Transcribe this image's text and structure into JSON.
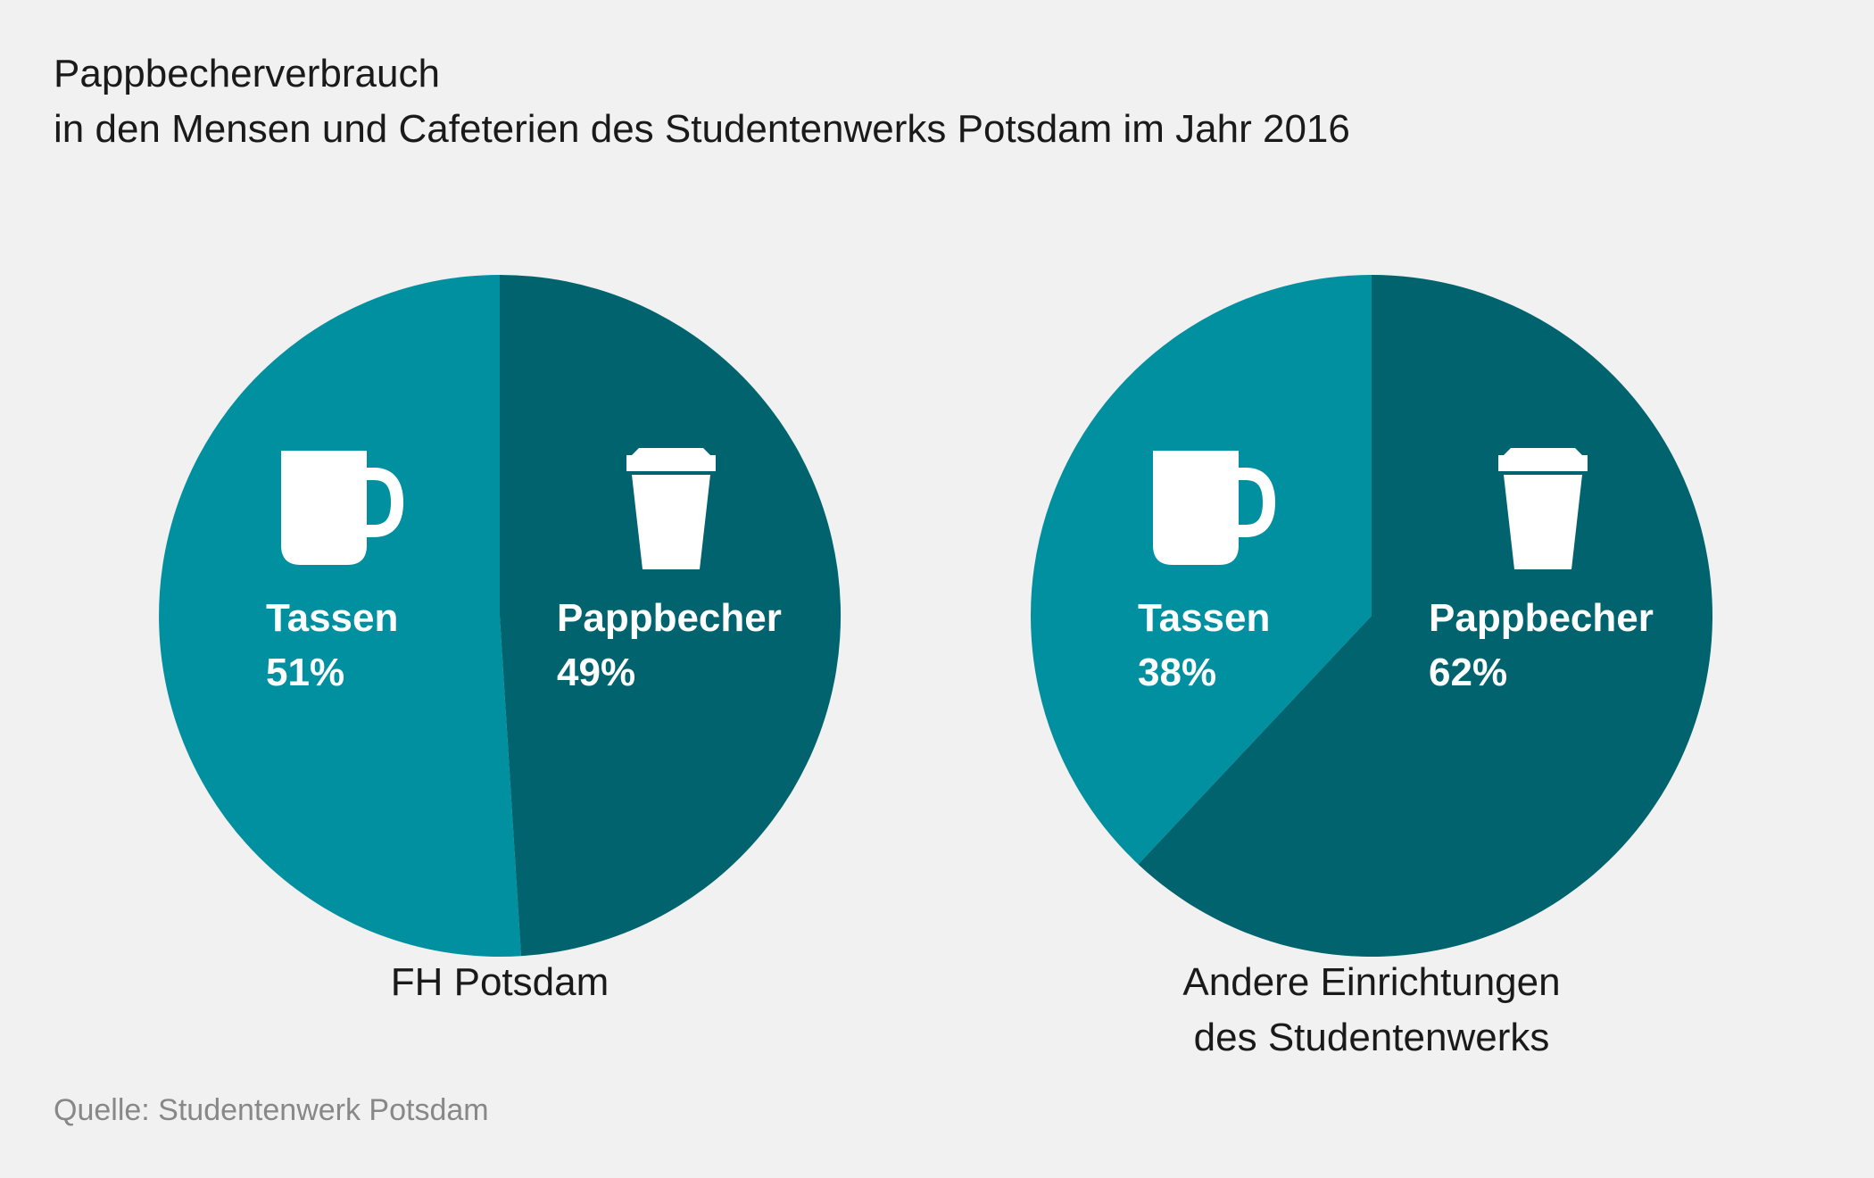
{
  "title": {
    "line1": "Pappbecherverbrauch",
    "line2": "in den Mensen und Cafeterien des Studentenwerks Potsdam im Jahr 2016"
  },
  "source": "Quelle: Studentenwerk Potsdam",
  "colors": {
    "tassen": "#0090a0",
    "pappbecher": "#00636d",
    "label_text": "#ffffff",
    "background": "#f1f1f1"
  },
  "chart_data": [
    {
      "type": "pie",
      "title": "FH Potsdam",
      "title_lines": [
        "FH Potsdam"
      ],
      "unit": "%",
      "slices": [
        {
          "label": "Tassen",
          "value": 51,
          "display": "51%",
          "icon": "mug-icon",
          "color": "#0090a0"
        },
        {
          "label": "Pappbecher",
          "value": 49,
          "display": "49%",
          "icon": "paper-cup-icon",
          "color": "#00636d"
        }
      ]
    },
    {
      "type": "pie",
      "title": "Andere Einrichtungen des Studentenwerks",
      "title_lines": [
        "Andere Einrichtungen",
        "des Studentenwerks"
      ],
      "unit": "%",
      "slices": [
        {
          "label": "Tassen",
          "value": 38,
          "display": "38%",
          "icon": "mug-icon",
          "color": "#0090a0"
        },
        {
          "label": "Pappbecher",
          "value": 62,
          "display": "62%",
          "icon": "paper-cup-icon",
          "color": "#00636d"
        }
      ]
    }
  ]
}
